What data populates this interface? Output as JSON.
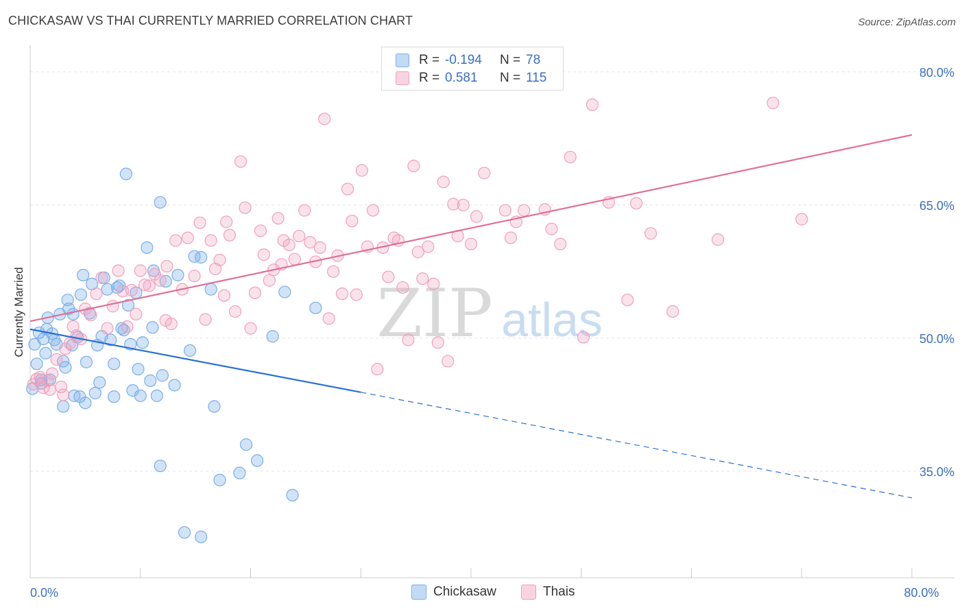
{
  "title": "CHICKASAW VS THAI CURRENTLY MARRIED CORRELATION CHART",
  "source": "Source: ZipAtlas.com",
  "watermark": {
    "zip": "ZIP",
    "atlas": "atlas"
  },
  "legend_top": [
    {
      "r_label": "R =",
      "r_value": "-0.194",
      "n_label": "N =",
      "n_value": "78",
      "color": "#7aaee8"
    },
    {
      "r_label": "R =",
      "r_value": "0.581",
      "n_label": "N =",
      "n_value": "115",
      "color": "#f0a0bc"
    }
  ],
  "legend_bottom": [
    {
      "label": "Chickasaw",
      "color": "#7aaee8"
    },
    {
      "label": "Thais",
      "color": "#f0a0bc"
    }
  ],
  "chart_data": {
    "type": "scatter",
    "title": "CHICKASAW VS THAI CURRENTLY MARRIED CORRELATION CHART",
    "xlabel": "",
    "ylabel": "Currently Married",
    "xlim": [
      0,
      80
    ],
    "ylim": [
      23,
      83
    ],
    "x_tick_labels": [
      {
        "value": 0,
        "label": "0.0%"
      },
      {
        "value": 80,
        "label": "80.0%"
      }
    ],
    "y_tick_labels": [
      {
        "value": 35,
        "label": "35.0%"
      },
      {
        "value": 50,
        "label": "50.0%"
      },
      {
        "value": 65,
        "label": "65.0%"
      },
      {
        "value": 80,
        "label": "80.0%"
      }
    ],
    "grid": true,
    "legend_position": "top-center",
    "series": [
      {
        "name": "Chickasaw",
        "color": "#7aaee8",
        "line_color": "#2a6fd4",
        "trend": {
          "x": [
            0,
            30
          ],
          "y": [
            51.0,
            43.9
          ],
          "dashed_to": {
            "x": 80,
            "y": 32.0
          }
        },
        "points": [
          [
            0.2,
            44.3
          ],
          [
            0.4,
            49.3
          ],
          [
            0.6,
            47.1
          ],
          [
            0.8,
            50.6
          ],
          [
            1.0,
            44.9
          ],
          [
            1.2,
            49.9
          ],
          [
            1.4,
            48.3
          ],
          [
            1.6,
            52.3
          ],
          [
            1.8,
            45.3
          ],
          [
            2.0,
            50.5
          ],
          [
            2.2,
            49.8
          ],
          [
            2.4,
            49.3
          ],
          [
            2.7,
            52.7
          ],
          [
            3.0,
            47.4
          ],
          [
            3.2,
            46.7
          ],
          [
            3.4,
            54.3
          ],
          [
            3.5,
            53.3
          ],
          [
            3.8,
            49.2
          ],
          [
            3.9,
            52.7
          ],
          [
            4.0,
            43.5
          ],
          [
            4.3,
            50.1
          ],
          [
            4.5,
            43.4
          ],
          [
            4.6,
            54.9
          ],
          [
            4.8,
            57.1
          ],
          [
            5.1,
            47.3
          ],
          [
            5.4,
            52.8
          ],
          [
            5.6,
            56.1
          ],
          [
            5.9,
            43.8
          ],
          [
            6.1,
            49.2
          ],
          [
            6.3,
            45.0
          ],
          [
            6.5,
            50.2
          ],
          [
            6.7,
            56.8
          ],
          [
            7.0,
            55.5
          ],
          [
            7.3,
            49.8
          ],
          [
            7.6,
            47.1
          ],
          [
            7.9,
            55.7
          ],
          [
            8.1,
            55.9
          ],
          [
            8.3,
            51.1
          ],
          [
            8.5,
            50.9
          ],
          [
            8.7,
            68.5
          ],
          [
            8.9,
            53.7
          ],
          [
            9.1,
            49.3
          ],
          [
            9.3,
            44.1
          ],
          [
            9.6,
            55.1
          ],
          [
            9.8,
            46.5
          ],
          [
            10.2,
            49.5
          ],
          [
            10.6,
            60.2
          ],
          [
            10.9,
            45.2
          ],
          [
            11.1,
            51.2
          ],
          [
            11.2,
            57.6
          ],
          [
            11.5,
            43.5
          ],
          [
            11.8,
            65.3
          ],
          [
            12.0,
            45.8
          ],
          [
            12.3,
            56.4
          ],
          [
            13.1,
            44.7
          ],
          [
            13.4,
            57.1
          ],
          [
            14.5,
            48.6
          ],
          [
            14.9,
            59.2
          ],
          [
            15.5,
            59.1
          ],
          [
            16.4,
            55.5
          ],
          [
            16.7,
            42.3
          ],
          [
            19.6,
            38.0
          ],
          [
            20.6,
            36.2
          ],
          [
            22.0,
            50.2
          ],
          [
            23.1,
            55.2
          ],
          [
            23.8,
            32.3
          ],
          [
            25.9,
            53.4
          ],
          [
            11.8,
            35.6
          ],
          [
            14.0,
            28.1
          ],
          [
            15.5,
            27.6
          ],
          [
            17.2,
            34.0
          ],
          [
            19.0,
            34.8
          ],
          [
            10.0,
            43.5
          ],
          [
            3.0,
            42.3
          ],
          [
            5.0,
            42.7
          ],
          [
            1.0,
            45.3
          ],
          [
            7.6,
            43.4
          ],
          [
            1.5,
            51.0
          ]
        ]
      },
      {
        "name": "Thais",
        "color": "#f0a0bc",
        "line_color": "#e06f98",
        "trend": {
          "x": [
            0,
            80
          ],
          "y": [
            51.9,
            72.9
          ]
        },
        "points": [
          [
            0.3,
            44.8
          ],
          [
            0.6,
            45.4
          ],
          [
            0.9,
            45.6
          ],
          [
            1.2,
            44.4
          ],
          [
            1.6,
            45.2
          ],
          [
            2.0,
            46.0
          ],
          [
            2.4,
            47.6
          ],
          [
            2.8,
            44.5
          ],
          [
            3.2,
            48.8
          ],
          [
            3.6,
            49.4
          ],
          [
            3.9,
            51.3
          ],
          [
            4.2,
            50.3
          ],
          [
            4.6,
            49.9
          ],
          [
            5.0,
            53.3
          ],
          [
            5.5,
            52.6
          ],
          [
            6.0,
            55.0
          ],
          [
            6.5,
            56.8
          ],
          [
            7.0,
            51.1
          ],
          [
            7.5,
            53.6
          ],
          [
            8.0,
            57.6
          ],
          [
            8.4,
            55.3
          ],
          [
            8.8,
            51.3
          ],
          [
            9.2,
            55.4
          ],
          [
            9.6,
            52.7
          ],
          [
            10.0,
            57.6
          ],
          [
            10.4,
            56.0
          ],
          [
            10.8,
            55.9
          ],
          [
            11.3,
            57.2
          ],
          [
            11.8,
            56.5
          ],
          [
            12.4,
            58.1
          ],
          [
            12.8,
            51.6
          ],
          [
            13.2,
            61.0
          ],
          [
            13.8,
            55.5
          ],
          [
            14.3,
            61.3
          ],
          [
            14.9,
            57.0
          ],
          [
            15.4,
            63.0
          ],
          [
            15.9,
            52.1
          ],
          [
            16.4,
            61.0
          ],
          [
            16.8,
            57.8
          ],
          [
            17.2,
            58.8
          ],
          [
            17.8,
            63.1
          ],
          [
            18.1,
            61.6
          ],
          [
            18.6,
            53.0
          ],
          [
            19.1,
            69.9
          ],
          [
            19.5,
            64.7
          ],
          [
            20.0,
            51.1
          ],
          [
            20.4,
            55.1
          ],
          [
            20.9,
            62.1
          ],
          [
            21.2,
            59.4
          ],
          [
            21.7,
            56.5
          ],
          [
            22.1,
            57.7
          ],
          [
            22.5,
            63.5
          ],
          [
            23.0,
            61.0
          ],
          [
            23.5,
            60.5
          ],
          [
            24.0,
            58.9
          ],
          [
            24.4,
            61.5
          ],
          [
            24.9,
            64.4
          ],
          [
            25.4,
            60.8
          ],
          [
            25.9,
            58.6
          ],
          [
            26.3,
            60.2
          ],
          [
            26.7,
            74.7
          ],
          [
            27.1,
            52.2
          ],
          [
            27.5,
            57.5
          ],
          [
            27.9,
            59.3
          ],
          [
            28.3,
            55.0
          ],
          [
            28.8,
            66.8
          ],
          [
            29.2,
            63.2
          ],
          [
            29.6,
            54.9
          ],
          [
            30.1,
            68.9
          ],
          [
            30.6,
            60.3
          ],
          [
            31.1,
            64.4
          ],
          [
            31.5,
            46.5
          ],
          [
            32.0,
            60.2
          ],
          [
            32.5,
            56.9
          ],
          [
            33.0,
            61.3
          ],
          [
            33.4,
            61.0
          ],
          [
            33.8,
            55.7
          ],
          [
            34.3,
            49.8
          ],
          [
            34.8,
            69.4
          ],
          [
            35.2,
            59.7
          ],
          [
            35.6,
            56.7
          ],
          [
            36.1,
            60.3
          ],
          [
            36.6,
            56.1
          ],
          [
            37.0,
            49.5
          ],
          [
            37.5,
            67.6
          ],
          [
            37.9,
            47.4
          ],
          [
            38.4,
            65.1
          ],
          [
            38.8,
            61.5
          ],
          [
            39.3,
            65.0
          ],
          [
            40.0,
            60.6
          ],
          [
            40.5,
            63.7
          ],
          [
            41.2,
            68.6
          ],
          [
            43.1,
            64.4
          ],
          [
            43.6,
            61.3
          ],
          [
            44.1,
            63.1
          ],
          [
            44.8,
            64.4
          ],
          [
            46.7,
            64.5
          ],
          [
            47.3,
            62.3
          ],
          [
            48.1,
            60.6
          ],
          [
            49.0,
            70.4
          ],
          [
            50.2,
            50.1
          ],
          [
            51.0,
            76.3
          ],
          [
            52.5,
            65.3
          ],
          [
            54.2,
            54.3
          ],
          [
            55.0,
            65.2
          ],
          [
            56.3,
            61.8
          ],
          [
            58.3,
            53.0
          ],
          [
            62.4,
            61.1
          ],
          [
            67.4,
            76.5
          ],
          [
            70.0,
            63.4
          ],
          [
            1.8,
            44.2
          ],
          [
            3.0,
            43.6
          ],
          [
            12.3,
            52.0
          ],
          [
            17.6,
            54.8
          ],
          [
            22.8,
            58.3
          ]
        ]
      }
    ]
  }
}
